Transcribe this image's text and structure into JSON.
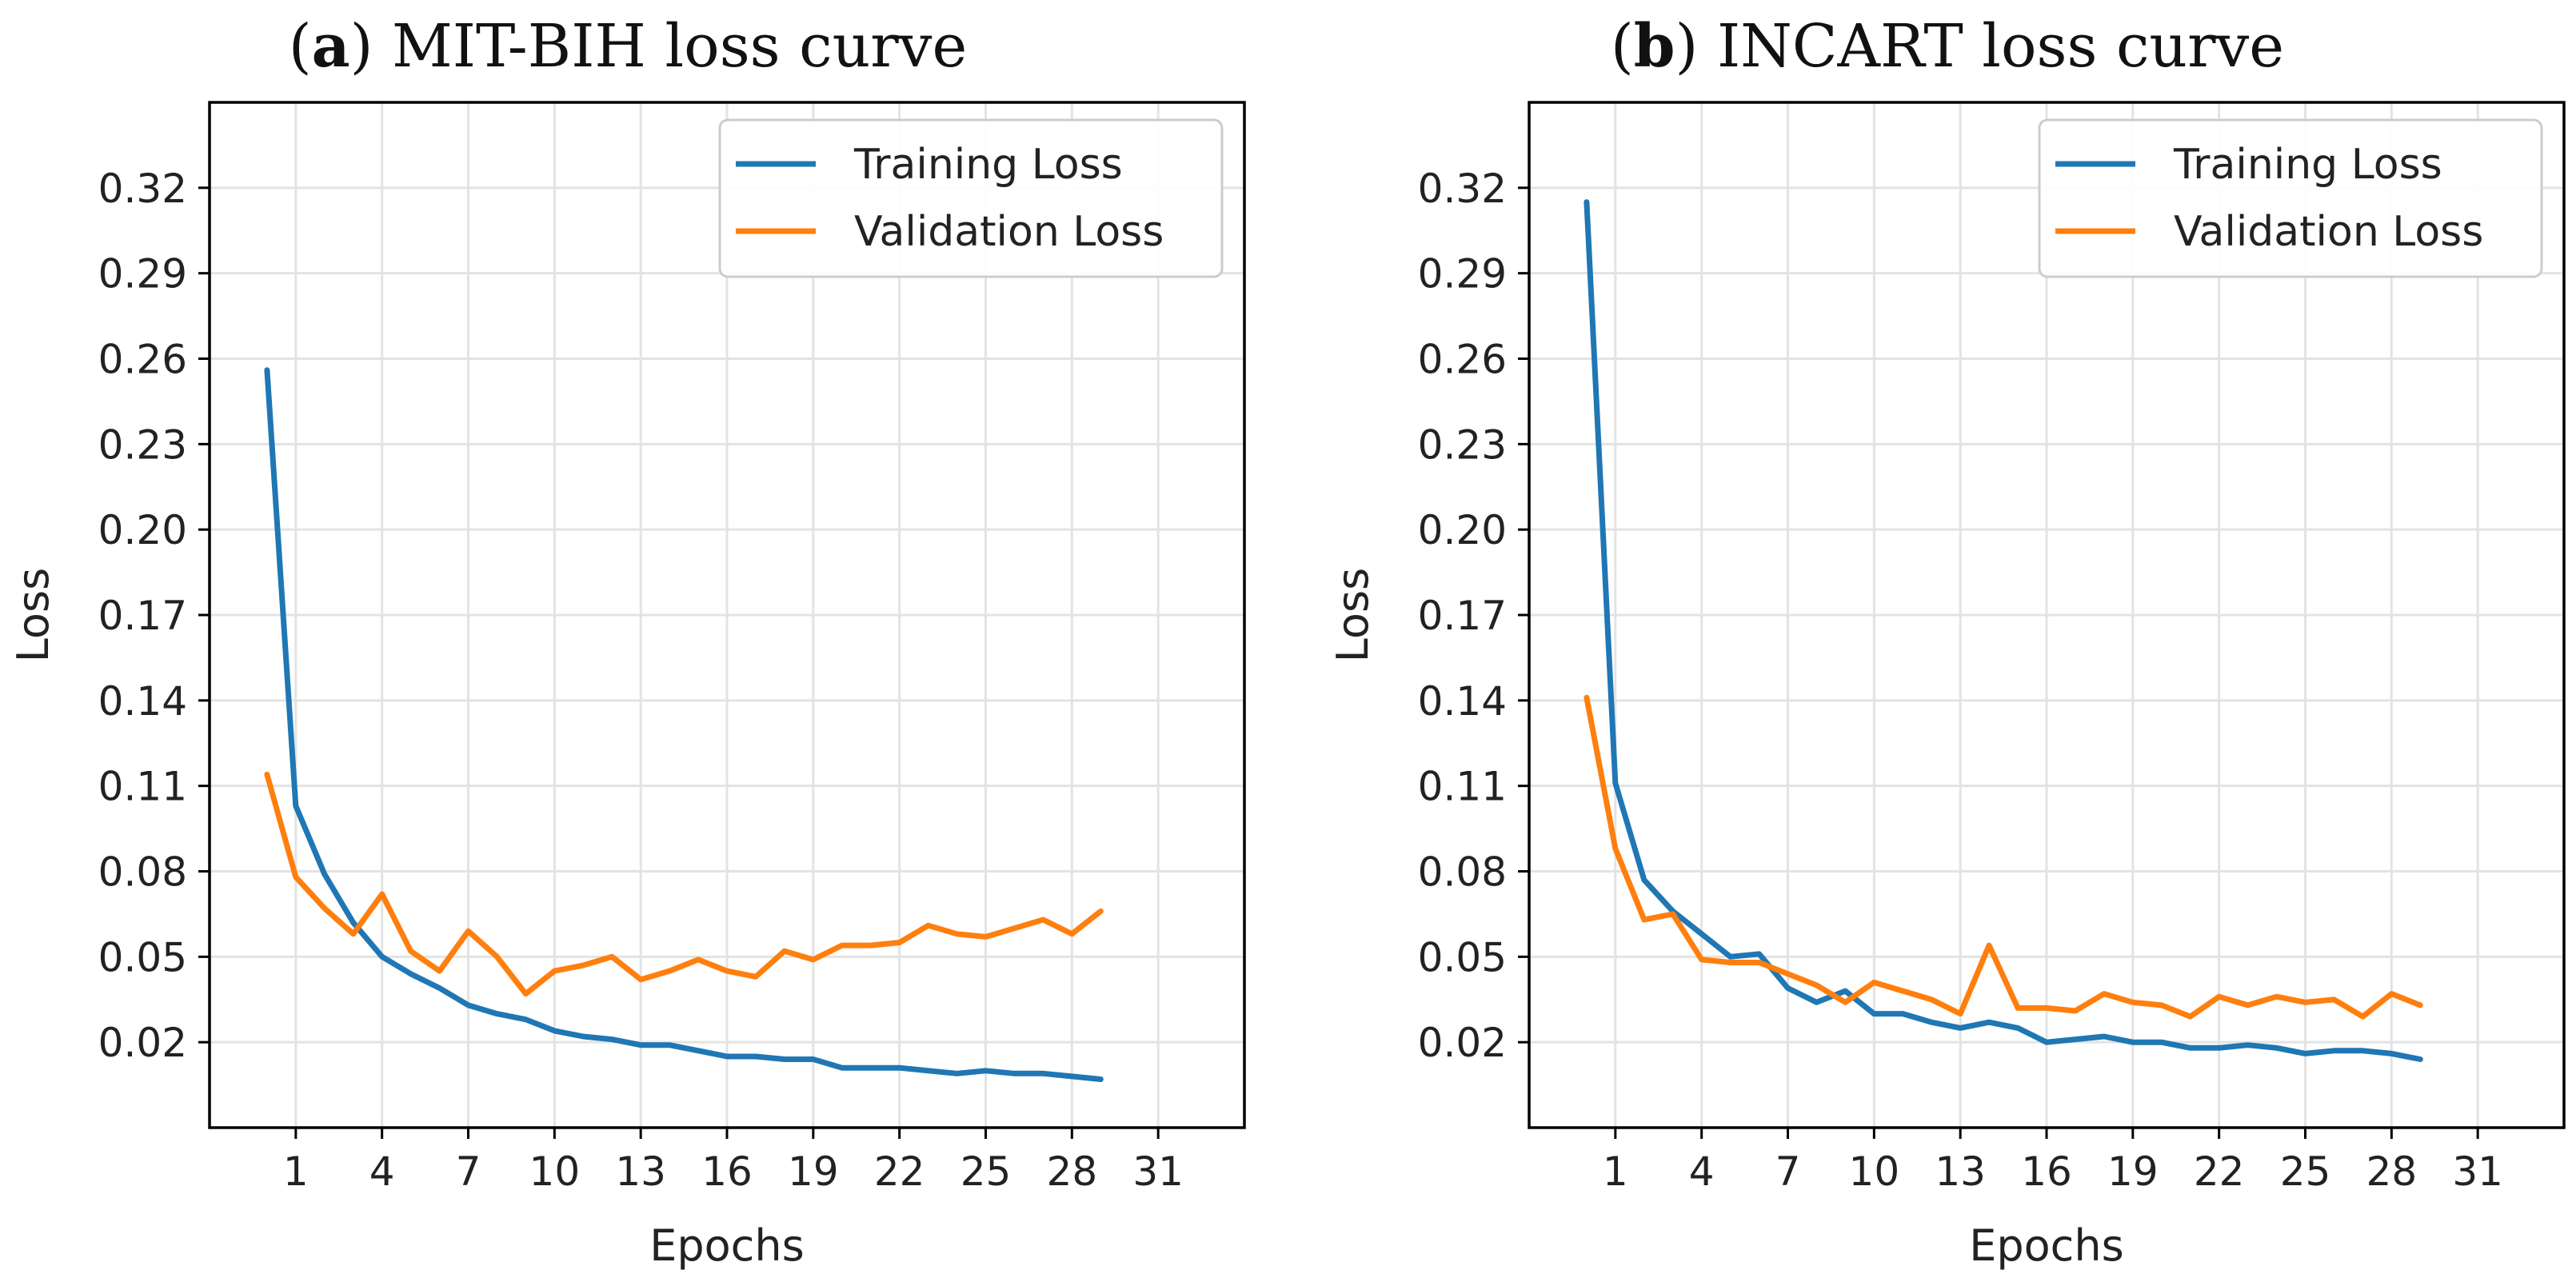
{
  "chart_data": [
    {
      "type": "line",
      "panel_letter": "a",
      "title": "MIT-BIH loss curve",
      "xlabel": "Epochs",
      "ylabel": "Loss",
      "xlim": [
        -2,
        34
      ],
      "ylim": [
        -0.01,
        0.35
      ],
      "xticks": [
        1,
        4,
        7,
        10,
        13,
        16,
        19,
        22,
        25,
        28,
        31
      ],
      "yticks": [
        0.02,
        0.05,
        0.08,
        0.11,
        0.14,
        0.17,
        0.2,
        0.23,
        0.26,
        0.29,
        0.32
      ],
      "ytick_labels": [
        "0.02",
        "0.05",
        "0.08",
        "0.11",
        "0.14",
        "0.17",
        "0.20",
        "0.23",
        "0.26",
        "0.29",
        "0.32"
      ],
      "grid": true,
      "legend_position": "top-right",
      "series": [
        {
          "name": "Training Loss",
          "color": "#1f77b4",
          "x": [
            0,
            1,
            2,
            3,
            4,
            5,
            6,
            7,
            8,
            9,
            10,
            11,
            12,
            13,
            14,
            15,
            16,
            17,
            18,
            19,
            20,
            21,
            22,
            23,
            24,
            25,
            26,
            27,
            28,
            29
          ],
          "values": [
            0.256,
            0.103,
            0.079,
            0.062,
            0.05,
            0.044,
            0.039,
            0.033,
            0.03,
            0.028,
            0.024,
            0.022,
            0.021,
            0.019,
            0.019,
            0.017,
            0.015,
            0.015,
            0.014,
            0.014,
            0.011,
            0.011,
            0.011,
            0.01,
            0.009,
            0.01,
            0.009,
            0.009,
            0.008,
            0.007
          ]
        },
        {
          "name": "Validation Loss",
          "color": "#ff7f0e",
          "x": [
            0,
            1,
            2,
            3,
            4,
            5,
            6,
            7,
            8,
            9,
            10,
            11,
            12,
            13,
            14,
            15,
            16,
            17,
            18,
            19,
            20,
            21,
            22,
            23,
            24,
            25,
            26,
            27,
            28,
            29
          ],
          "values": [
            0.114,
            0.078,
            0.067,
            0.058,
            0.072,
            0.052,
            0.045,
            0.059,
            0.05,
            0.037,
            0.045,
            0.047,
            0.05,
            0.042,
            0.045,
            0.049,
            0.045,
            0.043,
            0.052,
            0.049,
            0.054,
            0.054,
            0.055,
            0.061,
            0.058,
            0.057,
            0.06,
            0.063,
            0.058,
            0.066
          ]
        }
      ]
    },
    {
      "type": "line",
      "panel_letter": "b",
      "title": "INCART loss curve",
      "xlabel": "Epochs",
      "ylabel": "Loss",
      "xlim": [
        -2,
        34
      ],
      "ylim": [
        -0.01,
        0.35
      ],
      "xticks": [
        1,
        4,
        7,
        10,
        13,
        16,
        19,
        22,
        25,
        28,
        31
      ],
      "yticks": [
        0.02,
        0.05,
        0.08,
        0.11,
        0.14,
        0.17,
        0.2,
        0.23,
        0.26,
        0.29,
        0.32
      ],
      "ytick_labels": [
        "0.02",
        "0.05",
        "0.08",
        "0.11",
        "0.14",
        "0.17",
        "0.20",
        "0.23",
        "0.26",
        "0.29",
        "0.32"
      ],
      "grid": true,
      "legend_position": "top-right",
      "series": [
        {
          "name": "Training Loss",
          "color": "#1f77b4",
          "x": [
            0,
            1,
            2,
            3,
            4,
            5,
            6,
            7,
            8,
            9,
            10,
            11,
            12,
            13,
            14,
            15,
            16,
            17,
            18,
            19,
            20,
            21,
            22,
            23,
            24,
            25,
            26,
            27,
            28,
            29
          ],
          "values": [
            0.315,
            0.111,
            0.077,
            0.066,
            0.058,
            0.05,
            0.051,
            0.039,
            0.034,
            0.038,
            0.03,
            0.03,
            0.027,
            0.025,
            0.027,
            0.025,
            0.02,
            0.021,
            0.022,
            0.02,
            0.02,
            0.018,
            0.018,
            0.019,
            0.018,
            0.016,
            0.017,
            0.017,
            0.016,
            0.014
          ]
        },
        {
          "name": "Validation Loss",
          "color": "#ff7f0e",
          "x": [
            0,
            1,
            2,
            3,
            4,
            5,
            6,
            7,
            8,
            9,
            10,
            11,
            12,
            13,
            14,
            15,
            16,
            17,
            18,
            19,
            20,
            21,
            22,
            23,
            24,
            25,
            26,
            27,
            28,
            29
          ],
          "values": [
            0.141,
            0.088,
            0.063,
            0.065,
            0.049,
            0.048,
            0.048,
            0.044,
            0.04,
            0.034,
            0.041,
            0.038,
            0.035,
            0.03,
            0.054,
            0.032,
            0.032,
            0.031,
            0.037,
            0.034,
            0.033,
            0.029,
            0.036,
            0.033,
            0.036,
            0.034,
            0.035,
            0.029,
            0.037,
            0.033
          ]
        }
      ]
    }
  ]
}
